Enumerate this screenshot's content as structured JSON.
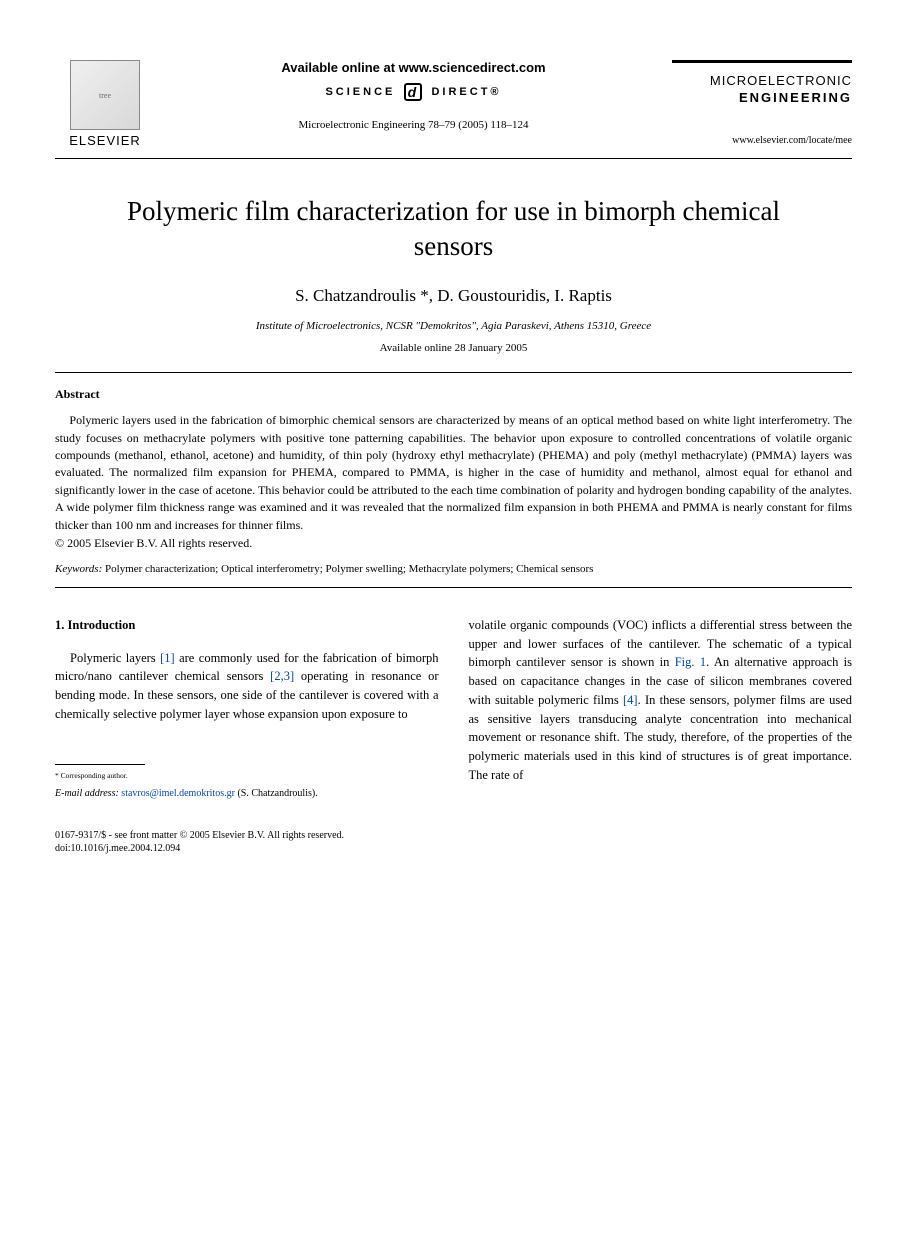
{
  "header": {
    "publisher_logo_text": "tree",
    "publisher_name": "ELSEVIER",
    "available_online": "Available online at www.sciencedirect.com",
    "science_label_left": "SCIENCE",
    "science_label_right": "DIRECT®",
    "citation": "Microelectronic Engineering 78–79 (2005) 118–124",
    "journal_line1": "MICROELECTRONIC",
    "journal_line2": "ENGINEERING",
    "journal_url": "www.elsevier.com/locate/mee"
  },
  "article": {
    "title": "Polymeric film characterization for use in bimorph chemical sensors",
    "authors": "S. Chatzandroulis *, D. Goustouridis, I. Raptis",
    "affiliation": "Institute of Microelectronics, NCSR \"Demokritos\", Agia Paraskevi, Athens 15310, Greece",
    "available_date": "Available online 28 January 2005"
  },
  "abstract": {
    "heading": "Abstract",
    "text": "Polymeric layers used in the fabrication of bimorphic chemical sensors are characterized by means of an optical method based on white light interferometry. The study focuses on methacrylate polymers with positive tone patterning capabilities. The behavior upon exposure to controlled concentrations of volatile organic compounds (methanol, ethanol, acetone) and humidity, of thin poly (hydroxy ethyl methacrylate) (PHEMA) and poly (methyl methacrylate) (PMMA) layers was evaluated. The normalized film expansion for PHEMA, compared to PMMA, is higher in the case of humidity and methanol, almost equal for ethanol and significantly lower in the case of acetone. This behavior could be attributed to the each time combination of polarity and hydrogen bonding capability of the analytes. A wide polymer film thickness range was examined and it was revealed that the normalized film expansion in both PHEMA and PMMA is nearly constant for films thicker than 100 nm and increases for thinner films.",
    "copyright": "© 2005 Elsevier B.V. All rights reserved."
  },
  "keywords": {
    "label": "Keywords:",
    "text": " Polymer characterization; Optical interferometry; Polymer swelling; Methacrylate polymers; Chemical sensors"
  },
  "intro": {
    "heading": "1. Introduction",
    "col1_pre": "Polymeric layers ",
    "ref1": "[1]",
    "col1_mid1": " are commonly used for the fabrication of bimorph micro/nano cantilever chemical sensors ",
    "ref23": "[2,3]",
    "col1_post": " operating in resonance or bending mode. In these sensors, one side of the cantilever is covered with a chemically selective polymer layer whose expansion upon exposure to",
    "col2_pre": "volatile organic compounds (VOC) inflicts a differential stress between the upper and lower surfaces of the cantilever. The schematic of a typical bimorph cantilever sensor is shown in ",
    "fig1": "Fig. 1",
    "col2_mid": ". An alternative approach is based on capacitance changes in the case of silicon membranes covered with suitable polymeric films ",
    "ref4": "[4]",
    "col2_post": ". In these sensors, polymer films are used as sensitive layers transducing analyte concentration into mechanical movement or resonance shift. The study, therefore, of the properties of the polymeric materials used in this kind of structures is of great importance. The rate of"
  },
  "footnote": {
    "corresp": "* Corresponding author.",
    "email_label": "E-mail address:",
    "email": "stavros@imel.demokritos.gr",
    "email_tail": " (S. Chatzandroulis)."
  },
  "footer": {
    "line1": "0167-9317/$ - see front matter © 2005 Elsevier B.V. All rights reserved.",
    "line2": "doi:10.1016/j.mee.2004.12.094"
  }
}
